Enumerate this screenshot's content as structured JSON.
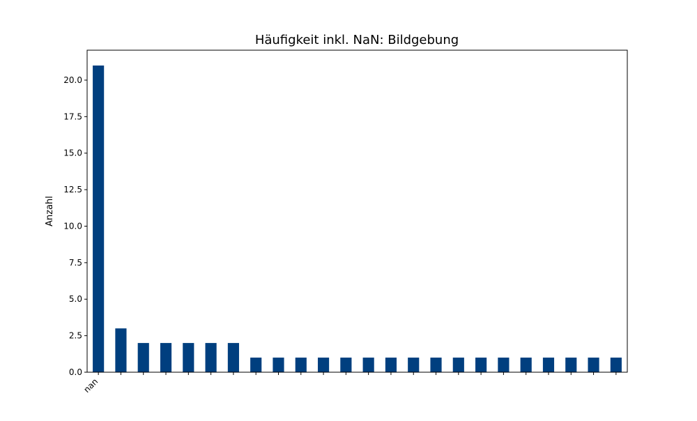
{
  "chart_data": {
    "type": "bar",
    "title": "Häufigkeit inkl. NaN: Bildgebung",
    "ylabel": "Anzahl",
    "categories": [
      "nan",
      null,
      null,
      null,
      null,
      null,
      null,
      null,
      null,
      null,
      null,
      null,
      null,
      null,
      null,
      null,
      null,
      null,
      null,
      null,
      null,
      null,
      null,
      null
    ],
    "values": [
      21,
      3,
      2,
      2,
      2,
      2,
      2,
      1,
      1,
      1,
      1,
      1,
      1,
      1,
      1,
      1,
      1,
      1,
      1,
      1,
      1,
      1,
      1,
      1
    ],
    "color": "#003f7f",
    "ylim": [
      0,
      22.05
    ],
    "yticks": [
      {
        "value": 0,
        "label": "0.0"
      },
      {
        "value": 2.5,
        "label": "2.5"
      },
      {
        "value": 5,
        "label": "5.0"
      },
      {
        "value": 7.5,
        "label": "7.5"
      },
      {
        "value": 10,
        "label": "10.0"
      },
      {
        "value": 12.5,
        "label": "12.5"
      },
      {
        "value": 15,
        "label": "15.0"
      },
      {
        "value": 17.5,
        "label": "17.5"
      },
      {
        "value": 20,
        "label": "20.0"
      }
    ],
    "grid": false
  }
}
